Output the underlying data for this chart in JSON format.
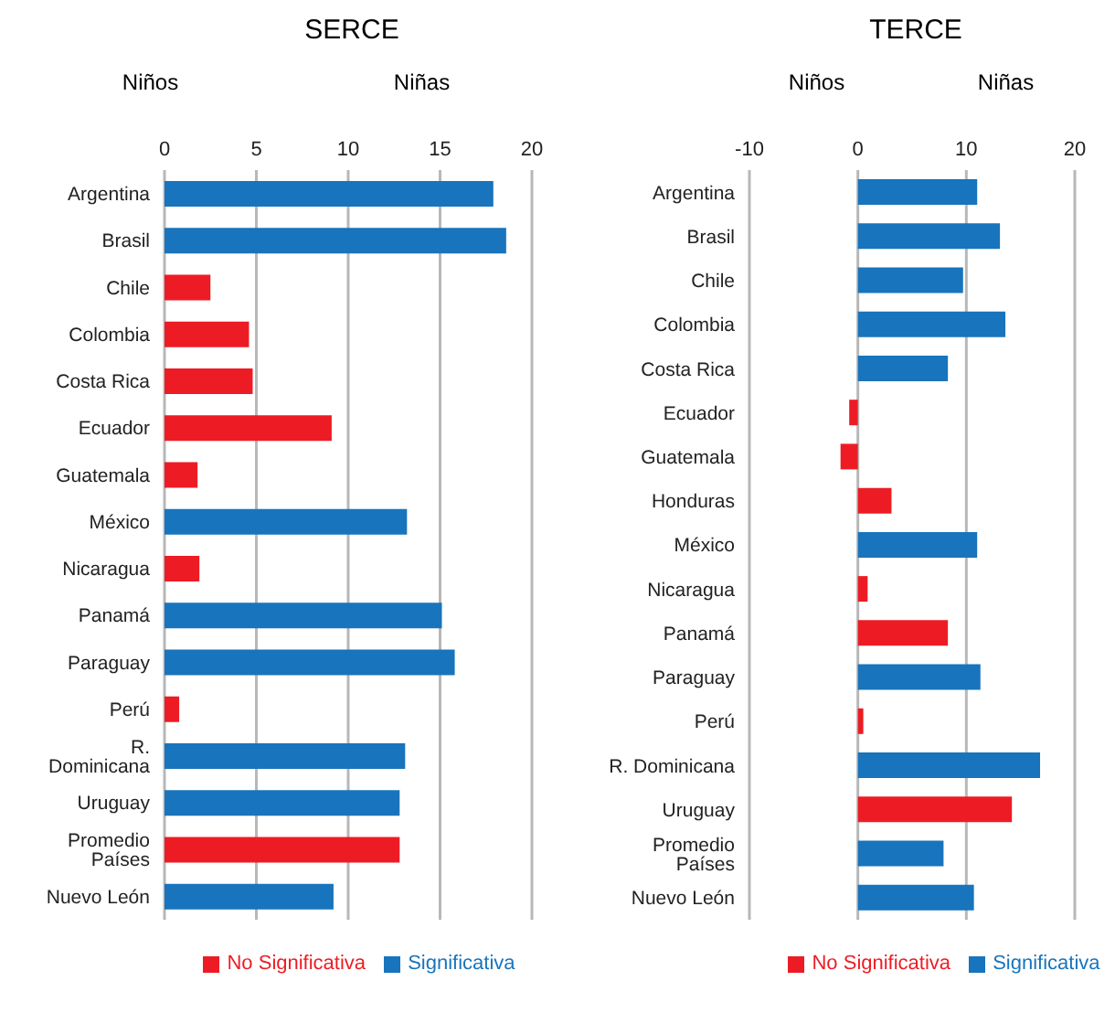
{
  "chart_data": [
    {
      "type": "bar",
      "title": "SERCE",
      "orientation": "horizontal",
      "stacked": true,
      "annotations": [
        "Niños",
        "Niñas"
      ],
      "categories": [
        "Argentina",
        "Brasil",
        "Chile",
        "Colombia",
        "Costa Rica",
        "Ecuador",
        "Guatemala",
        "México",
        "Nicaragua",
        "Panamá",
        "Paraguay",
        "Perú",
        "R. Dominicana",
        "Uruguay",
        "Promedio Países",
        "Nuevo León"
      ],
      "series": [
        {
          "name": "No Significativa",
          "color": "#ed1c24",
          "values": [
            null,
            null,
            2.5,
            4.6,
            4.8,
            9.1,
            1.8,
            null,
            1.9,
            null,
            null,
            0.8,
            null,
            null,
            12.8,
            null
          ]
        },
        {
          "name": "Significativa",
          "color": "#1874bc",
          "values": [
            17.9,
            18.6,
            null,
            null,
            null,
            null,
            null,
            13.2,
            null,
            15.1,
            15.8,
            null,
            13.1,
            12.8,
            null,
            9.2
          ]
        }
      ],
      "xlim": [
        0,
        20
      ],
      "xticks": [
        0,
        5,
        10,
        15,
        20
      ],
      "grid": "x",
      "legend": "bottom"
    },
    {
      "type": "bar",
      "title": "TERCE",
      "orientation": "horizontal",
      "stacked": true,
      "annotations": [
        "Niños",
        "Niñas"
      ],
      "categories": [
        "Argentina",
        "Brasil",
        "Chile",
        "Colombia",
        "Costa Rica",
        "Ecuador",
        "Guatemala",
        "Honduras",
        "México",
        "Nicaragua",
        "Panamá",
        "Paraguay",
        "Perú",
        "R. Dominicana",
        "Uruguay",
        "Promedio Países",
        "Nuevo León"
      ],
      "series": [
        {
          "name": "No Significativa",
          "color": "#ed1c24",
          "values": [
            null,
            null,
            null,
            null,
            null,
            -0.8,
            -1.6,
            3.1,
            null,
            0.9,
            8.3,
            null,
            0.5,
            null,
            14.2,
            null,
            null
          ]
        },
        {
          "name": "Significativa",
          "color": "#1874bc",
          "values": [
            11.0,
            13.1,
            9.7,
            13.6,
            8.3,
            null,
            null,
            null,
            11.0,
            null,
            null,
            11.3,
            null,
            16.8,
            null,
            7.9,
            10.7
          ]
        }
      ],
      "xlim": [
        -10,
        20
      ],
      "xticks": [
        -10,
        0,
        10,
        20
      ],
      "grid": "x",
      "legend": "bottom"
    }
  ]
}
